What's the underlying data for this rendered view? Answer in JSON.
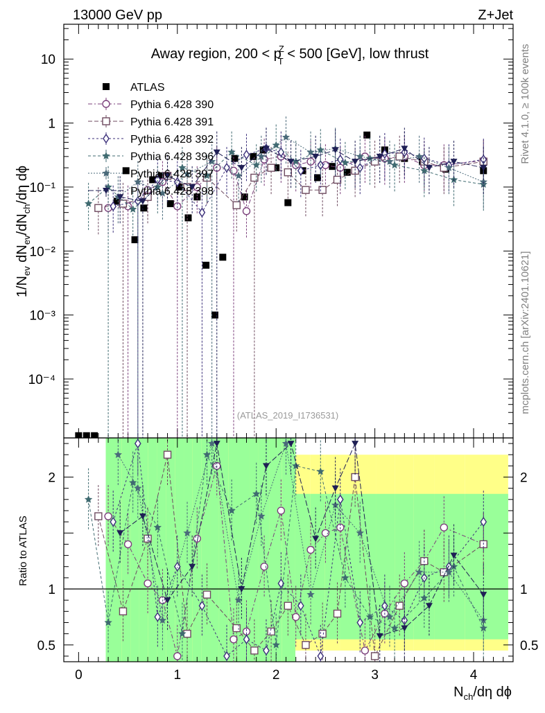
{
  "header": {
    "left": "13000 GeV pp",
    "right": "Z+Jet"
  },
  "side_labels": {
    "top": "Rivet 4.1.0, ≥ 100k events",
    "bottom": "mcplots.cern.ch [arXiv:2401.10621]"
  },
  "chart_data": [
    {
      "type": "scatter",
      "title_parts": {
        "pre": "Away region, 200 < p",
        "sup": "Z",
        "sub": "T",
        "post": " < 500 [GeV], low thrust"
      },
      "ylabel": "1/N_ev dN_ev/dN_ch/dη dϕ",
      "yscale": "log",
      "ylim": [
        1.2e-05,
        35
      ],
      "xlim": [
        -0.15,
        4.4
      ],
      "ytick_labels": [
        "10",
        "1",
        "10⁻¹",
        "10⁻²",
        "10⁻³",
        "10⁻⁴"
      ],
      "watermark": "(ATLAS_2019_I1736531)",
      "legend": [
        "ATLAS",
        "Pythia 6.428 390",
        "Pythia 6.428 391",
        "Pythia 6.428 392",
        "Pythia 6.428 396",
        "Pythia 6.428 397",
        "Pythia 6.428 398"
      ],
      "series": [
        {
          "name": "ATLAS",
          "color": "#000000",
          "marker": "square-filled",
          "x": [
            0.0,
            0.08,
            0.16,
            0.39,
            0.48,
            0.57,
            0.66,
            0.75,
            0.84,
            0.93,
            1.02,
            1.11,
            1.2,
            1.29,
            1.38,
            1.46,
            1.58,
            1.68,
            1.77,
            1.87,
            2.0,
            2.12,
            2.27,
            2.42,
            2.57,
            2.72,
            2.92,
            3.1,
            3.3,
            3.48,
            3.72,
            4.1
          ],
          "y": [
            1.3e-05,
            1.3e-05,
            1.3e-05,
            0.06,
            0.18,
            0.015,
            0.047,
            0.13,
            0.15,
            0.055,
            0.1,
            0.033,
            0.07,
            0.006,
            0.001,
            0.008,
            0.28,
            0.07,
            0.3,
            0.38,
            0.2,
            0.057,
            0.18,
            0.14,
            0.21,
            0.17,
            0.65,
            0.38,
            0.28,
            0.25,
            0.19,
            0.18
          ]
        },
        {
          "name": "Pythia 6.428 390",
          "color": "#7b3f7b",
          "marker": "circle-open",
          "dash": "6,3,2,3",
          "x": [
            0.3,
            0.5,
            0.7,
            0.85,
            1.0,
            1.2,
            1.4,
            1.57,
            1.7,
            1.88,
            2.05,
            2.2,
            2.35,
            2.5,
            2.65,
            2.9,
            3.1,
            3.3,
            3.5,
            3.7,
            4.1
          ],
          "y": [
            0.047,
            0.05,
            0.09,
            0.12,
            0.05,
            0.1,
            0.2,
            0.18,
            0.042,
            0.27,
            0.3,
            0.22,
            0.25,
            0.22,
            0.2,
            0.3,
            0.28,
            0.3,
            0.22,
            0.22,
            0.26
          ]
        },
        {
          "name": "Pythia 6.428 391",
          "color": "#6e4a5f",
          "marker": "square-open",
          "dash": "6,3",
          "x": [
            0.2,
            0.45,
            0.7,
            0.9,
            1.1,
            1.3,
            1.6,
            1.78,
            1.95,
            2.12,
            2.3,
            2.47,
            2.62,
            2.8,
            3.0,
            3.25,
            3.5,
            3.7,
            4.1
          ],
          "y": [
            0.047,
            0.055,
            0.07,
            0.15,
            0.1,
            0.14,
            0.052,
            0.14,
            0.2,
            0.17,
            0.09,
            0.09,
            0.13,
            0.18,
            0.25,
            0.3,
            0.25,
            0.2,
            0.25
          ]
        },
        {
          "name": "Pythia 6.428 392",
          "color": "#3b2f7a",
          "marker": "diamond-open",
          "dash": "3,3",
          "x": [
            0.35,
            0.6,
            0.8,
            1.0,
            1.25,
            1.5,
            1.7,
            1.9,
            2.05,
            2.25,
            2.45,
            2.65,
            2.85,
            3.1,
            3.3,
            3.5,
            3.75,
            4.1
          ],
          "y": [
            0.05,
            0.06,
            0.13,
            0.12,
            0.04,
            0.2,
            0.32,
            0.4,
            0.35,
            0.18,
            0.22,
            0.27,
            0.2,
            0.33,
            0.35,
            0.28,
            0.22,
            0.27
          ]
        },
        {
          "name": "Pythia 6.428 396",
          "color": "#3f6a70",
          "marker": "star-filled",
          "dash": "4,3",
          "x": [
            0.1,
            0.3,
            0.55,
            0.8,
            1.05,
            1.3,
            1.55,
            1.8,
            2.0,
            2.2,
            2.45,
            2.7,
            2.95,
            3.2,
            3.5,
            3.8,
            4.1
          ],
          "y": [
            0.055,
            0.1,
            0.045,
            0.1,
            0.2,
            0.15,
            0.35,
            0.22,
            0.45,
            0.25,
            0.38,
            0.24,
            0.28,
            0.22,
            0.18,
            0.13,
            0.11
          ]
        },
        {
          "name": "Pythia 6.428 397",
          "color": "#4a6a7a",
          "marker": "star-filled",
          "dash": "2,2",
          "x": [
            0.4,
            0.6,
            0.85,
            1.1,
            1.35,
            1.62,
            1.85,
            2.1,
            2.35,
            2.6,
            2.85,
            3.15,
            3.45,
            3.75,
            4.1
          ],
          "y": [
            0.07,
            0.12,
            0.08,
            0.16,
            0.25,
            0.15,
            0.3,
            0.6,
            0.35,
            0.4,
            0.3,
            0.25,
            0.3,
            0.2,
            0.12
          ]
        },
        {
          "name": "Pythia 6.428 398",
          "color": "#1f1f55",
          "marker": "triangle-down-filled",
          "dash": "8,3",
          "x": [
            0.42,
            0.65,
            0.9,
            1.15,
            1.4,
            1.65,
            1.9,
            2.15,
            2.4,
            2.6,
            2.8,
            3.05,
            3.3,
            3.55,
            3.8,
            4.1
          ],
          "y": [
            0.07,
            0.06,
            0.15,
            0.1,
            0.35,
            0.2,
            0.4,
            0.25,
            0.3,
            0.38,
            0.25,
            0.3,
            0.4,
            0.2,
            0.25,
            0.2
          ]
        }
      ]
    },
    {
      "type": "ratio",
      "ylabel": "Ratio to ATLAS",
      "xlabel_parts": {
        "main": "N",
        "sub": "ch",
        "rest": "/dη dϕ"
      },
      "ylim": [
        0.35,
        2.35
      ],
      "ytick_labels": [
        "2",
        "1",
        "0.5"
      ],
      "xtick_labels": [
        "0",
        "1",
        "2",
        "3",
        "4"
      ],
      "series": [
        {
          "name": "Pythia 6.428 390",
          "values": [
            1.65,
            1.4,
            1.05,
            0.9,
            0.4,
            1.45,
            2.1,
            0.55,
            0.62,
            1.2,
            1.7,
            0.75,
            1.35,
            1.5,
            1.55,
            0.45,
            0.78,
            1.05,
            1.25,
            1.55,
            1.4
          ]
        },
        {
          "name": "Pythia 6.428 391",
          "values": [
            1.65,
            0.8,
            1.45,
            2.2,
            0.6,
            0.95,
            0.65,
            0.45,
            0.62,
            0.85,
            0.5,
            0.6,
            0.78,
            2.0,
            0.4,
            0.85,
            1.25,
            1.15,
            1.4
          ]
        },
        {
          "name": "Pythia 6.428 392",
          "values": [
            1.6,
            2.3,
            0.75,
            1.2,
            0.85,
            0.4,
            0.55,
            0.45,
            1.05,
            0.85,
            0.4,
            1.8,
            0.7,
            0.85,
            0.72,
            1.1,
            1.2,
            1.6
          ]
        },
        {
          "name": "Pythia 6.428 396",
          "values": [
            1.8,
            0.7,
            1.95,
            1.55,
            0.6,
            2.2,
            1.7,
            1.85,
            0.5,
            2.1,
            2.05,
            1.1,
            0.75,
            0.65,
            0.92,
            1.2,
            0.65
          ]
        },
        {
          "name": "Pythia 6.428 397",
          "values": [
            2.2,
            1.9,
            0.72,
            1.5,
            2.3,
            0.9,
            1.65,
            2.3,
            0.95,
            1.75,
            1.5,
            0.75,
            1.15,
            1.15,
            0.72
          ]
        },
        {
          "name": "Pythia 6.428 398",
          "values": [
            1.5,
            1.65,
            0.9,
            1.2,
            2.3,
            1.0,
            2.1,
            2.3,
            1.45,
            1.9,
            2.3,
            0.58,
            0.65,
            0.85,
            1.3,
            0.95
          ]
        }
      ]
    }
  ]
}
